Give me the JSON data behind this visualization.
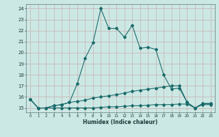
{
  "xlabel": "Humidex (Indice chaleur)",
  "bg_color": "#cce8e4",
  "line_color": "#1a6b6b",
  "grid_color": "#b8d8d4",
  "ylim": [
    14.6,
    24.4
  ],
  "xlim": [
    -0.5,
    23.5
  ],
  "yticks": [
    15,
    16,
    17,
    18,
    19,
    20,
    21,
    22,
    23,
    24
  ],
  "xticks": [
    0,
    1,
    2,
    3,
    4,
    5,
    6,
    7,
    8,
    9,
    10,
    11,
    12,
    13,
    14,
    15,
    16,
    17,
    18,
    19,
    20,
    21,
    22,
    23
  ],
  "series1_x": [
    0,
    1,
    2,
    3,
    4,
    5,
    6,
    7,
    8,
    9,
    10,
    11,
    12,
    13,
    14,
    15,
    16,
    17,
    18,
    19,
    20,
    21,
    22,
    23
  ],
  "series1_y": [
    15.8,
    15.0,
    15.0,
    15.2,
    15.3,
    15.5,
    17.2,
    19.5,
    20.9,
    24.0,
    22.2,
    22.2,
    21.4,
    22.5,
    20.4,
    20.5,
    20.3,
    18.0,
    16.7,
    16.8,
    15.5,
    15.0,
    15.4,
    15.4
  ],
  "series2_x": [
    0,
    1,
    2,
    3,
    4,
    5,
    6,
    7,
    8,
    9,
    10,
    11,
    12,
    13,
    14,
    15,
    16,
    17,
    18,
    19,
    20,
    21,
    22,
    23
  ],
  "series2_y": [
    15.8,
    15.0,
    15.0,
    15.2,
    15.3,
    15.5,
    15.6,
    15.7,
    15.9,
    16.0,
    16.1,
    16.2,
    16.35,
    16.5,
    16.6,
    16.7,
    16.8,
    16.9,
    17.0,
    17.0,
    15.5,
    15.0,
    15.4,
    15.4
  ],
  "series3_x": [
    0,
    1,
    2,
    3,
    4,
    5,
    6,
    7,
    8,
    9,
    10,
    11,
    12,
    13,
    14,
    15,
    16,
    17,
    18,
    19,
    20,
    21,
    22,
    23
  ],
  "series3_y": [
    15.8,
    15.0,
    15.0,
    15.0,
    15.0,
    15.0,
    15.0,
    15.0,
    15.0,
    15.05,
    15.1,
    15.1,
    15.15,
    15.2,
    15.2,
    15.25,
    15.3,
    15.3,
    15.3,
    15.35,
    15.35,
    15.0,
    15.3,
    15.3
  ]
}
